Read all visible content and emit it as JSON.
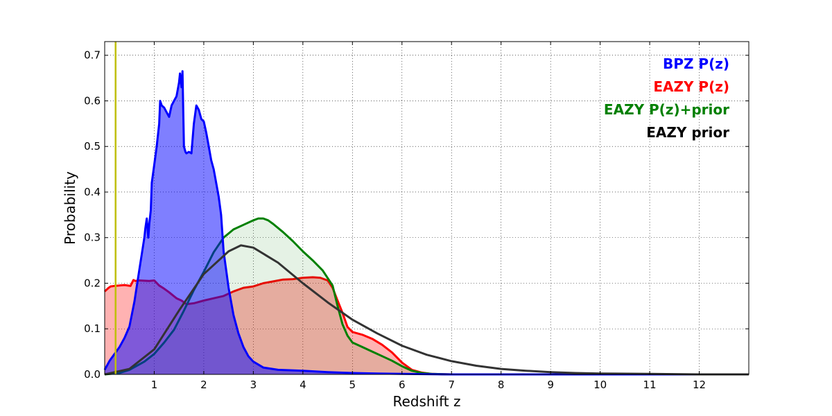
{
  "chart_data": {
    "type": "area",
    "xlabel": "Redshift z",
    "ylabel": "Probability",
    "xlim": [
      0,
      13
    ],
    "ylim": [
      0,
      0.73
    ],
    "xticks": [
      1,
      2,
      3,
      4,
      5,
      6,
      7,
      8,
      9,
      10,
      11,
      12
    ],
    "yticks": [
      0.0,
      0.1,
      0.2,
      0.3,
      0.4,
      0.5,
      0.6,
      0.7
    ],
    "xtick_labels": [
      "1",
      "2",
      "3",
      "4",
      "5",
      "6",
      "7",
      "8",
      "9",
      "10",
      "11",
      "12"
    ],
    "ytick_labels": [
      "0.0",
      "0.1",
      "0.2",
      "0.3",
      "0.4",
      "0.5",
      "0.6",
      "0.7"
    ],
    "grid": true,
    "legend_position": "top-right",
    "vertical_line": {
      "x": 0.22,
      "color": "#bfbf00"
    },
    "series": [
      {
        "name": "EAZY P(z)",
        "color": "#ff0000",
        "fill": "#ff0000",
        "fill_opacity": 0.3,
        "filled": true,
        "x": [
          0,
          0.08,
          0.12,
          0.2,
          0.4,
          0.52,
          0.58,
          0.62,
          0.7,
          0.9,
          1.0,
          1.1,
          1.2,
          1.3,
          1.45,
          1.55,
          1.65,
          1.8,
          2.0,
          2.2,
          2.4,
          2.6,
          2.8,
          3.0,
          3.2,
          3.4,
          3.6,
          3.8,
          4.0,
          4.2,
          4.35,
          4.5,
          4.6,
          4.7,
          4.8,
          4.9,
          5.0,
          5.2,
          5.4,
          5.6,
          5.8,
          6.0,
          6.2,
          6.4,
          6.6,
          7.0,
          8.0,
          13.0
        ],
        "y": [
          0.182,
          0.19,
          0.193,
          0.194,
          0.196,
          0.194,
          0.207,
          0.205,
          0.206,
          0.205,
          0.206,
          0.195,
          0.188,
          0.18,
          0.167,
          0.162,
          0.154,
          0.156,
          0.162,
          0.167,
          0.172,
          0.182,
          0.19,
          0.193,
          0.2,
          0.204,
          0.208,
          0.209,
          0.212,
          0.213,
          0.212,
          0.206,
          0.19,
          0.162,
          0.135,
          0.104,
          0.093,
          0.087,
          0.078,
          0.065,
          0.048,
          0.026,
          0.01,
          0.004,
          0.001,
          0.0,
          0.0,
          0.0
        ]
      },
      {
        "name": "EAZY P(z)+prior",
        "color": "#008000",
        "fill": "#008000",
        "fill_opacity": 0.1,
        "filled": true,
        "x": [
          0,
          0.3,
          0.5,
          0.8,
          1.0,
          1.2,
          1.4,
          1.6,
          1.8,
          2.0,
          2.2,
          2.4,
          2.6,
          2.8,
          3.0,
          3.1,
          3.2,
          3.3,
          3.4,
          3.6,
          3.8,
          4.0,
          4.2,
          4.4,
          4.6,
          4.7,
          4.8,
          4.9,
          5.0,
          5.2,
          5.4,
          5.6,
          5.8,
          6.0,
          6.2,
          6.4,
          6.6,
          7.0,
          8.0,
          13.0
        ],
        "y": [
          0.0,
          0.003,
          0.01,
          0.028,
          0.045,
          0.07,
          0.098,
          0.14,
          0.185,
          0.225,
          0.268,
          0.3,
          0.318,
          0.328,
          0.338,
          0.342,
          0.342,
          0.338,
          0.33,
          0.312,
          0.292,
          0.27,
          0.25,
          0.228,
          0.195,
          0.15,
          0.11,
          0.085,
          0.07,
          0.06,
          0.05,
          0.04,
          0.03,
          0.018,
          0.008,
          0.003,
          0.001,
          0.0,
          0.0,
          0.0
        ]
      },
      {
        "name": "BPZ P(z)",
        "color": "#0000ff",
        "fill": "#0000ff",
        "fill_opacity": 0.5,
        "filled": true,
        "x": [
          0,
          0.1,
          0.2,
          0.3,
          0.4,
          0.5,
          0.6,
          0.7,
          0.75,
          0.8,
          0.82,
          0.85,
          0.88,
          0.9,
          0.93,
          0.95,
          1.0,
          1.05,
          1.1,
          1.12,
          1.15,
          1.2,
          1.25,
          1.3,
          1.35,
          1.4,
          1.45,
          1.5,
          1.52,
          1.55,
          1.57,
          1.6,
          1.63,
          1.65,
          1.7,
          1.75,
          1.8,
          1.85,
          1.9,
          1.95,
          2.0,
          2.05,
          2.1,
          2.15,
          2.2,
          2.25,
          2.3,
          2.35,
          2.4,
          2.5,
          2.6,
          2.7,
          2.8,
          2.9,
          3.0,
          3.2,
          3.5,
          4.0,
          4.5,
          5.0,
          5.5,
          6.0,
          7.0,
          8.0,
          13.0
        ],
        "y": [
          0.01,
          0.03,
          0.045,
          0.06,
          0.08,
          0.105,
          0.16,
          0.23,
          0.265,
          0.3,
          0.32,
          0.342,
          0.3,
          0.33,
          0.36,
          0.42,
          0.46,
          0.5,
          0.55,
          0.6,
          0.59,
          0.585,
          0.575,
          0.565,
          0.59,
          0.6,
          0.61,
          0.64,
          0.66,
          0.63,
          0.665,
          0.5,
          0.488,
          0.485,
          0.488,
          0.485,
          0.55,
          0.59,
          0.58,
          0.56,
          0.555,
          0.53,
          0.5,
          0.47,
          0.45,
          0.42,
          0.39,
          0.35,
          0.27,
          0.19,
          0.13,
          0.09,
          0.06,
          0.04,
          0.028,
          0.015,
          0.01,
          0.008,
          0.005,
          0.003,
          0.002,
          0.001,
          0.0,
          0.0,
          0.0
        ]
      },
      {
        "name": "EAZY prior",
        "color": "#333333",
        "filled": false,
        "x": [
          0,
          0.5,
          1.0,
          1.5,
          2.0,
          2.5,
          2.75,
          3.0,
          3.5,
          4.0,
          4.5,
          5.0,
          5.5,
          6.0,
          6.5,
          7.0,
          7.5,
          8.0,
          8.5,
          9.0,
          9.5,
          10.0,
          11.0,
          12.0,
          13.0
        ],
        "y": [
          0.0,
          0.012,
          0.055,
          0.14,
          0.22,
          0.27,
          0.283,
          0.278,
          0.245,
          0.2,
          0.158,
          0.12,
          0.09,
          0.063,
          0.043,
          0.029,
          0.019,
          0.012,
          0.008,
          0.005,
          0.003,
          0.002,
          0.001,
          0.0,
          0.0
        ]
      }
    ],
    "legend": [
      {
        "label": "BPZ P(z)",
        "color": "#0000ff"
      },
      {
        "label": "EAZY P(z)",
        "color": "#ff0000"
      },
      {
        "label": "EAZY P(z)+prior",
        "color": "#008000"
      },
      {
        "label": "EAZY prior",
        "color": "#000000"
      }
    ]
  }
}
